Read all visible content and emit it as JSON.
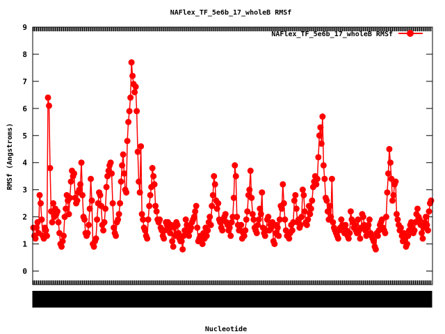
{
  "chart_data": {
    "type": "line",
    "title": "NAFlex_TF_5e6b_17_wholeB RMSf",
    "xlabel": "Nucleotide",
    "ylabel": "RMSf (Angstroms)",
    "ylim": [
      -0.5,
      9
    ],
    "yticks": [
      0,
      1,
      2,
      3,
      4,
      5,
      6,
      7,
      8,
      9
    ],
    "grid": false,
    "legend_position": "top-right",
    "series": [
      {
        "name": "NAFlex_TF_5e6b_17_wholeB RMSf",
        "color": "#ff0000",
        "y": [
          1.6,
          1.3,
          1.2,
          1.6,
          1.8,
          1.4,
          2.8,
          2.5,
          1.9,
          1.3,
          1.2,
          1.6,
          1.5,
          1.3,
          6.4,
          6.1,
          3.8,
          2.2,
          1.8,
          2.5,
          2.0,
          2.3,
          2.1,
          2.2,
          1.8,
          1.4,
          1.0,
          0.9,
          1.1,
          1.3,
          2.0,
          2.3,
          2.8,
          2.6,
          2.1,
          2.7,
          3.3,
          3.7,
          3.5,
          3.6,
          2.7,
          2.5,
          2.6,
          2.9,
          3.0,
          3.2,
          4.0,
          2.8,
          2.0,
          1.9,
          1.4,
          1.3,
          1.4,
          1.7,
          2.3,
          3.4,
          2.6,
          1.0,
          0.9,
          1.1,
          1.2,
          1.9,
          2.5,
          2.9,
          2.8,
          2.4,
          1.7,
          1.5,
          1.8,
          2.3,
          3.1,
          3.5,
          3.7,
          3.9,
          4.0,
          3.6,
          2.5,
          1.6,
          1.4,
          1.3,
          1.8,
          1.9,
          2.1,
          2.5,
          3.3,
          3.9,
          4.3,
          3.6,
          3.0,
          2.9,
          4.8,
          5.5,
          5.9,
          6.4,
          7.7,
          7.2,
          6.9,
          6.6,
          6.8,
          5.9,
          4.4,
          3.3,
          2.9,
          4.6,
          2.1,
          1.9,
          1.6,
          1.5,
          1.3,
          1.2,
          1.9,
          2.4,
          2.8,
          3.1,
          3.8,
          3.5,
          3.2,
          2.4,
          2.2,
          1.9,
          1.8,
          1.9,
          1.6,
          1.5,
          1.3,
          1.2,
          1.5,
          1.8,
          1.7,
          1.8,
          1.6,
          1.4,
          1.7,
          1.1,
          0.9,
          1.6,
          1.3,
          1.8,
          1.7,
          1.4,
          1.2,
          1.1,
          1.1,
          0.8,
          1.3,
          1.5,
          1.9,
          1.7,
          1.4,
          1.3,
          1.5,
          1.6,
          1.8,
          1.9,
          2.0,
          2.2,
          2.4,
          1.6,
          1.1,
          1.2,
          1.3,
          1.1,
          1.0,
          1.4,
          1.2,
          1.6,
          1.3,
          1.5,
          1.8,
          2.0,
          1.7,
          2.4,
          2.8,
          3.5,
          3.2,
          2.6,
          2.3,
          2.5,
          1.9,
          1.8,
          1.6,
          1.5,
          1.9,
          2.0,
          2.1,
          1.8,
          1.7,
          1.5,
          1.6,
          1.3,
          1.8,
          2.0,
          2.7,
          3.9,
          3.5,
          2.0,
          1.7,
          1.5,
          1.5,
          1.7,
          1.2,
          1.4,
          1.3,
          1.5,
          1.9,
          2.2,
          2.8,
          3.0,
          3.7,
          2.7,
          2.1,
          1.9,
          1.6,
          1.5,
          1.4,
          1.7,
          1.9,
          2.3,
          2.1,
          2.9,
          1.6,
          1.4,
          1.3,
          1.5,
          1.9,
          2.0,
          1.5,
          1.7,
          1.6,
          1.8,
          1.1,
          1.0,
          1.4,
          1.7,
          1.6,
          1.3,
          1.9,
          2.4,
          2.3,
          3.2,
          2.5,
          1.9,
          1.5,
          1.3,
          1.4,
          1.2,
          1.4,
          1.7,
          1.5,
          1.8,
          2.6,
          2.8,
          2.3,
          1.8,
          1.9,
          1.6,
          1.7,
          2.0,
          3.0,
          2.8,
          2.2,
          1.8,
          1.7,
          1.9,
          2.4,
          2.1,
          2.3,
          2.6,
          3.1,
          3.3,
          3.5,
          3.2,
          3.4,
          4.2,
          5.0,
          5.3,
          4.7,
          5.7,
          3.9,
          3.4,
          2.7,
          2.6,
          2.2,
          1.9,
          2.4,
          2.0,
          3.4,
          1.8,
          1.6,
          1.5,
          1.4,
          1.3,
          1.2,
          1.5,
          1.6,
          1.9,
          1.7,
          1.6,
          1.4,
          1.7,
          1.5,
          1.3,
          1.2,
          1.4,
          2.2,
          1.9,
          1.8,
          1.6,
          1.7,
          1.5,
          1.4,
          1.9,
          1.5,
          1.2,
          1.6,
          2.1,
          2.0,
          1.7,
          1.5,
          1.3,
          1.6,
          1.7,
          1.9,
          1.4,
          1.3,
          1.2,
          1.1,
          0.9,
          0.8,
          1.4,
          1.3,
          1.5,
          1.7,
          1.8,
          1.9,
          1.6,
          1.5,
          1.4,
          2.0,
          2.9,
          3.6,
          4.5,
          4.0,
          3.4,
          2.6,
          2.8,
          3.2,
          3.3,
          2.1,
          1.9,
          1.7,
          1.5,
          1.6,
          1.3,
          1.1,
          1.4,
          1.2,
          0.9,
          1.0,
          1.3,
          1.5,
          1.7,
          1.8,
          1.6,
          1.4,
          1.5,
          1.8,
          2.1,
          2.3,
          2.0,
          1.9,
          1.7,
          1.4,
          1.2,
          1.6,
          1.8,
          2.0,
          1.7,
          1.5,
          2.2,
          2.5,
          2.6
        ]
      }
    ]
  }
}
